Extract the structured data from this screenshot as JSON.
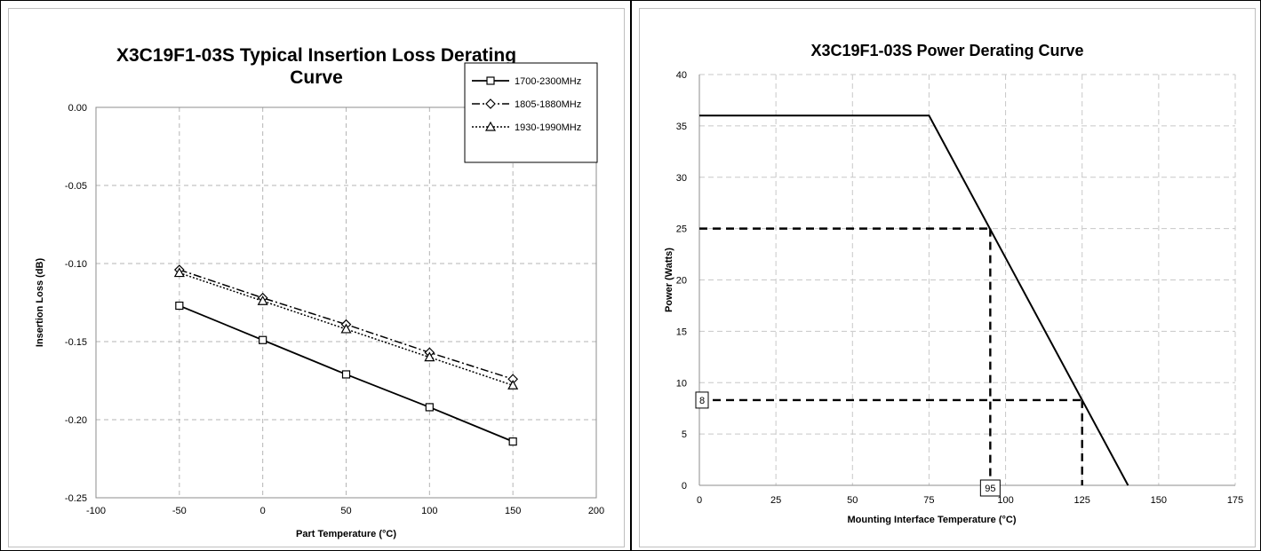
{
  "chart_data": [
    {
      "type": "line",
      "title": "X3C19F1-03S Typical Insertion Loss Derating Curve",
      "title_lines": [
        "X3C19F1-03S Typical Insertion Loss Derating",
        "Curve"
      ],
      "xlabel": "Part Temperature (°C)",
      "ylabel": "Insertion Loss (dB)",
      "xlim": [
        -100,
        200
      ],
      "ylim": [
        -0.25,
        0.0
      ],
      "xticks": [
        -100,
        -50,
        0,
        50,
        100,
        150,
        200
      ],
      "yticks": [
        0.0,
        -0.05,
        -0.1,
        -0.15,
        -0.2,
        -0.25
      ],
      "ytick_labels": [
        "0.00",
        "-0.05",
        "-0.10",
        "-0.15",
        "-0.20",
        "-0.25"
      ],
      "grid": true,
      "legend_position": "top-right",
      "x": [
        -50,
        0,
        50,
        100,
        150
      ],
      "series": [
        {
          "name": "1700-2300MHz",
          "values": [
            -0.127,
            -0.149,
            -0.171,
            -0.192,
            -0.214
          ],
          "marker": "square",
          "dash": "solid",
          "color": "#000000"
        },
        {
          "name": "1805-1880MHz",
          "values": [
            -0.104,
            -0.122,
            -0.139,
            -0.157,
            -0.174
          ],
          "marker": "diamond",
          "dash": "dashdot",
          "color": "#000000"
        },
        {
          "name": "1930-1990MHz",
          "values": [
            -0.106,
            -0.124,
            -0.142,
            -0.16,
            -0.178
          ],
          "marker": "triangle",
          "dash": "dotted",
          "color": "#000000"
        }
      ]
    },
    {
      "type": "line",
      "title": "X3C19F1-03S Power Derating Curve",
      "xlabel": "Mounting Interface Temperature (°C)",
      "ylabel": "Power (Watts)",
      "xlim": [
        0,
        175
      ],
      "ylim": [
        0,
        40
      ],
      "xticks": [
        0,
        25,
        50,
        75,
        100,
        125,
        150,
        175
      ],
      "yticks": [
        0,
        5,
        10,
        15,
        20,
        25,
        30,
        35,
        40
      ],
      "grid": true,
      "series": [
        {
          "x": [
            0,
            75,
            140
          ],
          "values": [
            36,
            36,
            0
          ],
          "color": "#000000"
        }
      ],
      "reference_lines": [
        {
          "from": [
            0,
            25
          ],
          "to": [
            95,
            25
          ]
        },
        {
          "from": [
            95,
            25
          ],
          "to": [
            95,
            0
          ]
        },
        {
          "from": [
            0,
            8.3
          ],
          "to": [
            125,
            8.3
          ]
        },
        {
          "from": [
            125,
            8.3
          ],
          "to": [
            125,
            0
          ]
        }
      ],
      "annotations": [
        {
          "text": "8",
          "at": "y-axis",
          "value": 8.3
        },
        {
          "text": "95",
          "at": "x-axis",
          "value": 95
        }
      ]
    }
  ]
}
